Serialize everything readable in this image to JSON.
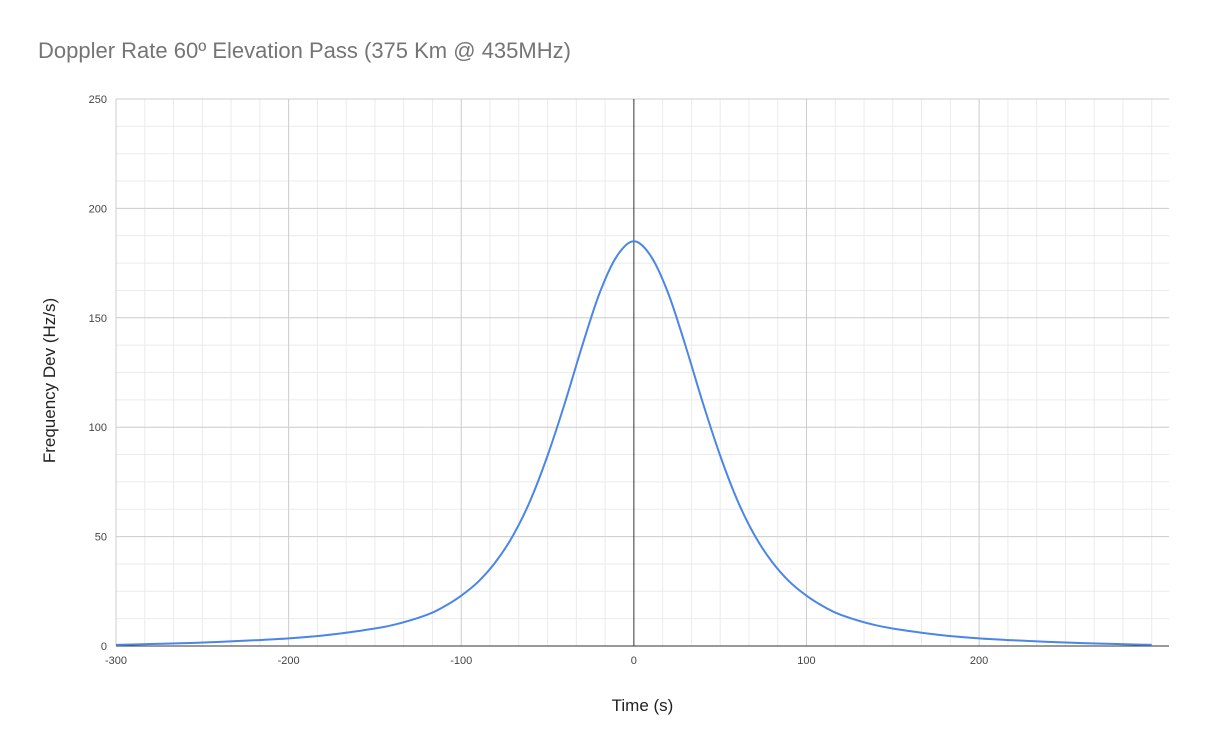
{
  "chart_data": {
    "type": "line",
    "title": "Doppler Rate 60º Elevation Pass (375 Km @ 435MHz)",
    "xlabel": "Time (s)",
    "ylabel": "Frequency Dev (Hz/s)",
    "xlim": [
      -300,
      310
    ],
    "ylim": [
      0,
      250
    ],
    "x_ticks": [
      -300,
      -200,
      -100,
      0,
      100,
      200
    ],
    "x_tick_labels": [
      "-300",
      "-200",
      "-100",
      "0",
      "100",
      "200"
    ],
    "y_ticks": [
      0,
      50,
      100,
      150,
      200,
      250
    ],
    "y_tick_labels": [
      "0",
      "50",
      "100",
      "150",
      "200",
      "250"
    ],
    "grid": true,
    "legend": "none",
    "zero_line": true,
    "series": [
      {
        "color": "#4a86e8",
        "x": [
          -300,
          -280,
          -260,
          -240,
          -220,
          -200,
          -180,
          -160,
          -140,
          -120,
          -110,
          -100,
          -90,
          -80,
          -70,
          -60,
          -50,
          -40,
          -30,
          -20,
          -10,
          0,
          10,
          20,
          30,
          40,
          50,
          60,
          70,
          80,
          90,
          100,
          110,
          120,
          140,
          160,
          180,
          200,
          220,
          240,
          260,
          280,
          300
        ],
        "y": [
          0.5,
          0.9,
          1.3,
          1.9,
          2.6,
          3.5,
          4.8,
          6.8,
          9.5,
          14.2,
          18,
          23,
          29.5,
          38.5,
          50.5,
          66.5,
          87,
          111,
          137,
          161,
          178,
          185,
          178,
          161,
          137,
          111,
          87,
          66.5,
          50.5,
          38.5,
          29.5,
          23,
          18,
          14.2,
          9.5,
          6.8,
          4.8,
          3.5,
          2.6,
          1.9,
          1.3,
          0.9,
          0.5
        ]
      }
    ]
  }
}
